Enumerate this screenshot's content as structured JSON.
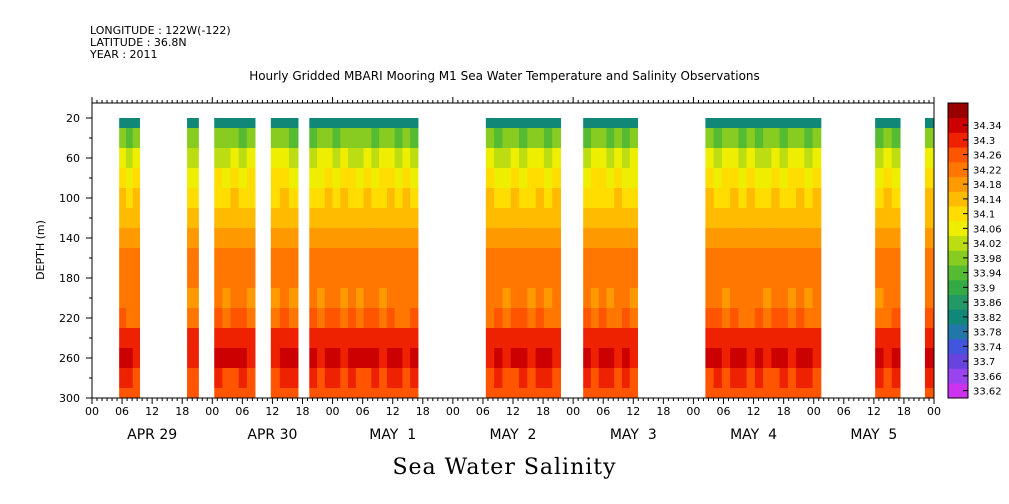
{
  "header": {
    "longitude": "LONGITUDE : 122W(-122)",
    "latitude": "LATITUDE : 36.8N",
    "year": "YEAR : 2011"
  },
  "chart_data": {
    "type": "heatmap",
    "title": "Hourly Gridded MBARI Mooring M1 Sea Water Temperature and Salinity Observations",
    "bottom_label": "Sea Water Salinity",
    "ylabel": "DEPTH (m)",
    "ylim": [
      300,
      0
    ],
    "y_ticks": [
      20,
      60,
      100,
      140,
      180,
      220,
      260,
      300
    ],
    "x_hour_ticks": [
      "00",
      "06",
      "12",
      "18",
      "00",
      "06",
      "12",
      "18",
      "00",
      "06",
      "12",
      "18",
      "00",
      "06",
      "12",
      "18",
      "00",
      "06",
      "12",
      "18",
      "00",
      "06",
      "12",
      "18",
      "00",
      "06",
      "12",
      "18",
      "00"
    ],
    "x_day_labels": [
      "APR 29",
      "APR 30",
      "MAY  1",
      "MAY  2",
      "MAY  3",
      "MAY  4",
      "MAY  5"
    ],
    "colorbar": {
      "levels": [
        33.62,
        33.66,
        33.7,
        33.74,
        33.78,
        33.82,
        33.86,
        33.9,
        33.94,
        33.98,
        34.02,
        34.06,
        34.1,
        34.14,
        34.18,
        34.22,
        34.26,
        34.3,
        34.34
      ],
      "colors": [
        "#cc33ee",
        "#9944ee",
        "#6644dd",
        "#4455dd",
        "#2277aa",
        "#118877",
        "#229966",
        "#33aa44",
        "#55bb33",
        "#88cc22",
        "#bbdd11",
        "#eeee00",
        "#ffdd00",
        "#ffbb00",
        "#ff9900",
        "#ff7700",
        "#ff5500",
        "#ee2200",
        "#cc0000",
        "#990000"
      ]
    },
    "data_blocks_hours": [
      [
        12,
        21
      ],
      [
        42,
        47
      ],
      [
        54,
        72
      ],
      [
        79,
        91
      ],
      [
        96,
        144
      ],
      [
        174,
        207
      ],
      [
        217,
        241
      ],
      [
        271,
        322
      ],
      [
        346,
        357
      ],
      [
        368,
        372
      ]
    ],
    "salinity_profile": [
      {
        "depth": 20,
        "value": 33.8
      },
      {
        "depth": 40,
        "value": 33.95
      },
      {
        "depth": 60,
        "value": 34.02
      },
      {
        "depth": 80,
        "value": 34.06
      },
      {
        "depth": 100,
        "value": 34.09
      },
      {
        "depth": 120,
        "value": 34.12
      },
      {
        "depth": 140,
        "value": 34.16
      },
      {
        "depth": 160,
        "value": 34.2
      },
      {
        "depth": 180,
        "value": 34.2
      },
      {
        "depth": 200,
        "value": 34.19
      },
      {
        "depth": 220,
        "value": 34.22
      },
      {
        "depth": 240,
        "value": 34.28
      },
      {
        "depth": 260,
        "value": 34.31
      },
      {
        "depth": 280,
        "value": 34.26
      },
      {
        "depth": 300,
        "value": 34.24
      }
    ]
  }
}
